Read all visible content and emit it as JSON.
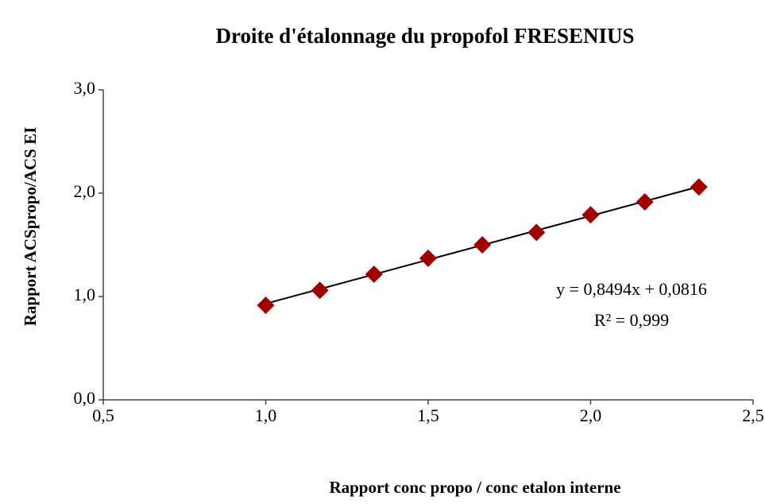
{
  "chart_data": {
    "type": "scatter",
    "title": "Droite d'étalonnage du propofol FRESENIUS",
    "x_label": "Rapport conc propo  / conc etalon interne",
    "y_label": "Rapport ACSpropo/ACS EI",
    "series": [
      {
        "name": "propofol",
        "color": "#a00000",
        "x": [
          1.0,
          1.1667,
          1.3333,
          1.5,
          1.6667,
          1.8333,
          2.0,
          2.1667,
          2.3333
        ],
        "values": [
          0.915,
          1.06,
          1.215,
          1.37,
          1.5,
          1.62,
          1.79,
          1.915,
          2.06
        ]
      }
    ],
    "trendline": {
      "slope": 0.8494,
      "intercept": 0.0816,
      "color": "#000000",
      "equation": "y = 0,8494x + 0,0816",
      "r2": "R² = 0,999"
    },
    "xlim": [
      0.5,
      2.5
    ],
    "xticks": [
      {
        "value": 0.5,
        "label": "0,5"
      },
      {
        "value": 1.0,
        "label": "1,0"
      },
      {
        "value": 1.5,
        "label": "1,5"
      },
      {
        "value": 2.0,
        "label": "2,0"
      },
      {
        "value": 2.5,
        "label": "2,5"
      }
    ],
    "ylim": [
      0,
      3
    ],
    "yticks": [
      {
        "value": 0,
        "label": "0,0"
      },
      {
        "value": 1,
        "label": "1,0"
      },
      {
        "value": 2,
        "label": "2,0"
      },
      {
        "value": 3,
        "label": "3,0"
      }
    ],
    "grid": false
  }
}
